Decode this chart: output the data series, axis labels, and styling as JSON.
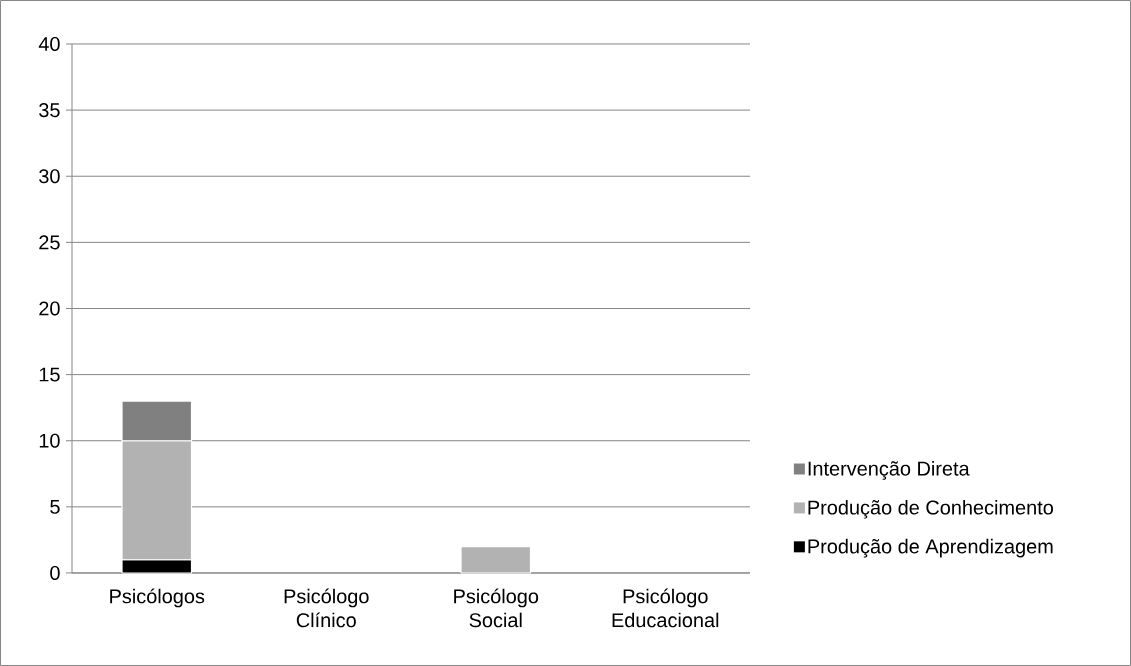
{
  "chart_data": {
    "type": "bar",
    "stacked": true,
    "categories": [
      "Psicólogos",
      "Psicólogo Clínico",
      "Psicólogo Social",
      "Psicólogo Educacional"
    ],
    "series": [
      {
        "name": "Produção de Aprendizagem",
        "color": "#000000",
        "values": [
          1,
          0,
          0,
          0
        ]
      },
      {
        "name": "Produção de Conhecimento",
        "color": "#b2b2b2",
        "values": [
          9,
          0,
          2,
          0
        ]
      },
      {
        "name": "Intervenção Direta",
        "color": "#808080",
        "values": [
          3,
          0,
          0,
          0
        ]
      }
    ],
    "ylim": [
      0,
      40
    ],
    "yticks": [
      0,
      5,
      10,
      15,
      20,
      25,
      30,
      35,
      40
    ],
    "grid": "y",
    "legend": "right"
  }
}
